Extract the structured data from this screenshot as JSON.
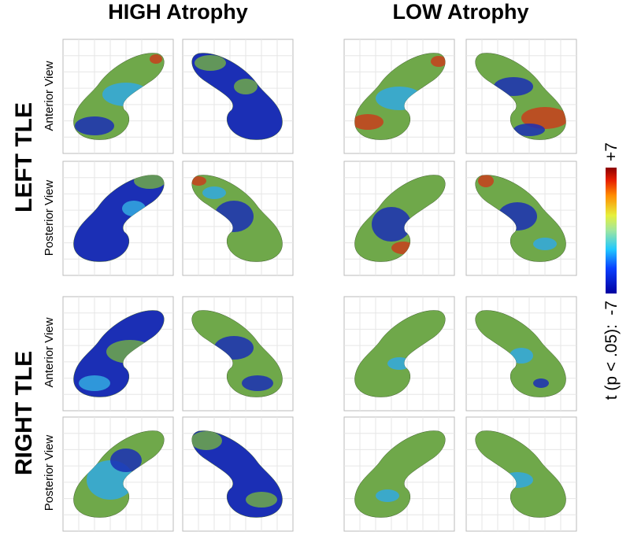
{
  "columns": {
    "high": "HIGH Atrophy",
    "low": "LOW Atrophy"
  },
  "rows": [
    {
      "label": "LEFT TLE",
      "views": [
        "Anterior View",
        "Posterior View"
      ]
    },
    {
      "label": "RIGHT TLE",
      "views": [
        "Anterior View",
        "Posterior View"
      ]
    }
  ],
  "colorbar": {
    "label": "t (p < .05):",
    "min": "-7",
    "max": "+7"
  }
}
